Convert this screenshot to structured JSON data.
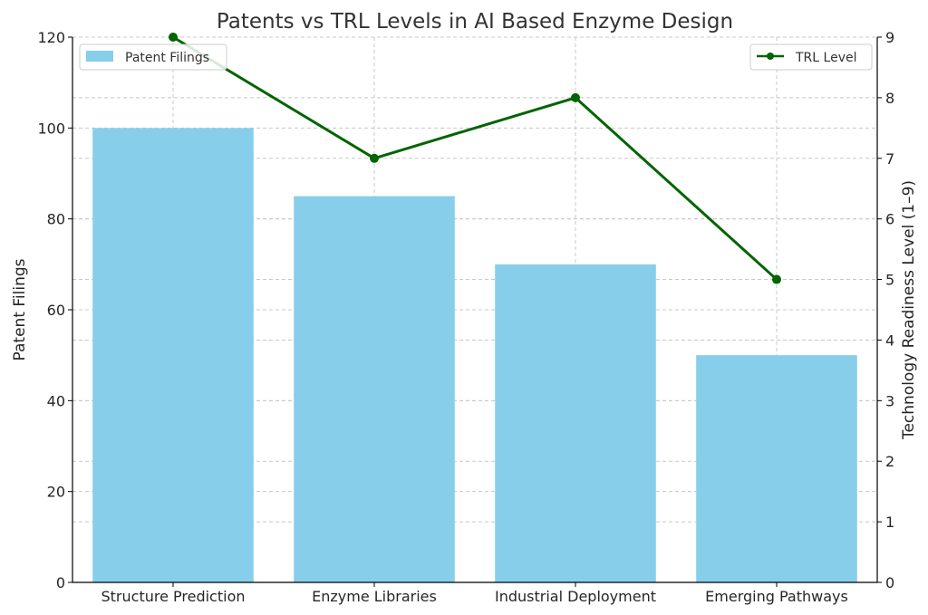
{
  "chart_data": {
    "type": "bar",
    "title": "Patents vs TRL Levels in AI Based Enzyme Design",
    "categories": [
      "Structure Prediction",
      "Enzyme Libraries",
      "Industrial Deployment",
      "Emerging Pathways"
    ],
    "xlabel": "",
    "ylabel": "Patent Filings",
    "y2label": "Technology Readiness Level (1–9)",
    "ylim": [
      0,
      120
    ],
    "y2lim": [
      0,
      9
    ],
    "yticks": [
      "0",
      "20",
      "40",
      "60",
      "80",
      "100",
      "120"
    ],
    "y2ticks": [
      "0",
      "1",
      "2",
      "3",
      "4",
      "5",
      "6",
      "7",
      "8",
      "9"
    ],
    "grid": true,
    "series": [
      {
        "name": "Patent Filings",
        "kind": "bar",
        "axis": "left",
        "color": "#87ceeb",
        "values": [
          100,
          85,
          70,
          50
        ]
      },
      {
        "name": "TRL Level",
        "kind": "line",
        "axis": "right",
        "color": "#006400",
        "values": [
          9,
          7,
          8,
          5
        ]
      }
    ],
    "legends": [
      {
        "label": "Patent Filings",
        "placement": "top-left"
      },
      {
        "label": "TRL Level",
        "placement": "top-right"
      }
    ]
  }
}
